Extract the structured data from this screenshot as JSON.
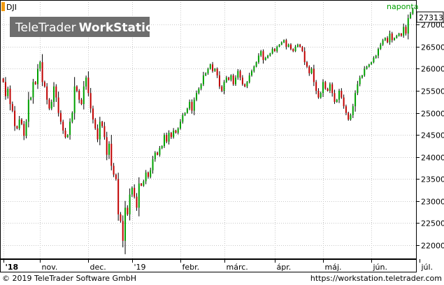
{
  "symbol": "DJI",
  "watermark": {
    "brand": "TeleTrader",
    "product": "WorkStation"
  },
  "interval_label": "naponta",
  "last_price_label": "27313",
  "colors": {
    "up": "#00a000",
    "down": "#c00000",
    "wick": "#000000",
    "grid": "#c8c8c8",
    "interval_text": "#00a000",
    "symbol_box": "#f39c12",
    "price_box_bg": "#ffffff"
  },
  "footer": {
    "copyright": "© 2019 TeleTrader Software GmbH",
    "url": "https://workstation.teletrader.com"
  },
  "chart_data": {
    "type": "candlestick",
    "ylim": [
      21700,
      27560
    ],
    "grid": true,
    "y_ticks": [
      22000,
      22500,
      23000,
      23500,
      24000,
      24500,
      25000,
      25500,
      26000,
      26500,
      27000
    ],
    "x_tick_labels": [
      "'18",
      "nov.",
      "dec.",
      "'19",
      "febr.",
      "márc.",
      "ápr.",
      "máj.",
      "jún.",
      "júl."
    ],
    "x_tick_index": [
      0,
      16,
      37,
      56,
      77,
      96,
      118,
      139,
      160,
      181
    ],
    "closes": [
      25700,
      25380,
      25550,
      25200,
      25050,
      24700,
      24650,
      24850,
      24750,
      24480,
      24800,
      25300,
      25350,
      25700,
      25650,
      26000,
      26150,
      25700,
      25600,
      25300,
      25100,
      25250,
      25600,
      25350,
      25000,
      24800,
      24600,
      24450,
      24500,
      24800,
      25000,
      25600,
      25500,
      25300,
      25200,
      25600,
      25800,
      25450,
      25100,
      24850,
      24650,
      24400,
      24800,
      24700,
      24450,
      24050,
      24300,
      23800,
      23600,
      23500,
      22700,
      22550,
      22100,
      22850,
      22700,
      23150,
      23300,
      23100,
      22850,
      23400,
      23350,
      23450,
      23650,
      23550,
      23700,
      23950,
      24100,
      24050,
      24200,
      24250,
      24500,
      24350,
      24550,
      24450,
      24600,
      24550,
      24650,
      24800,
      24950,
      25000,
      25100,
      25250,
      25050,
      25300,
      25450,
      25550,
      25650,
      25850,
      25900,
      26000,
      26100,
      25950,
      26000,
      25850,
      25600,
      25500,
      25700,
      25800,
      25750,
      25850,
      25650,
      25800,
      25950,
      25800,
      25650,
      25600,
      25700,
      25850,
      25950,
      26050,
      26150,
      26300,
      26400,
      26200,
      26250,
      26300,
      26350,
      26450,
      26400,
      26500,
      26550,
      26600,
      26650,
      26500,
      26550,
      26450,
      26400,
      26500,
      26550,
      26500,
      26400,
      26150,
      26050,
      25900,
      26000,
      25700,
      25500,
      25350,
      25450,
      25700,
      25550,
      25500,
      25650,
      25450,
      25250,
      25300,
      25500,
      25350,
      25150,
      25000,
      24850,
      24950,
      25150,
      25450,
      25650,
      25800,
      25850,
      26000,
      26050,
      26100,
      26150,
      26250,
      26300,
      26450,
      26550,
      26650,
      26700,
      26600,
      26800,
      26650,
      26700,
      26750,
      26800,
      26750,
      26950,
      26800,
      27150,
      27250,
      27350
    ]
  }
}
